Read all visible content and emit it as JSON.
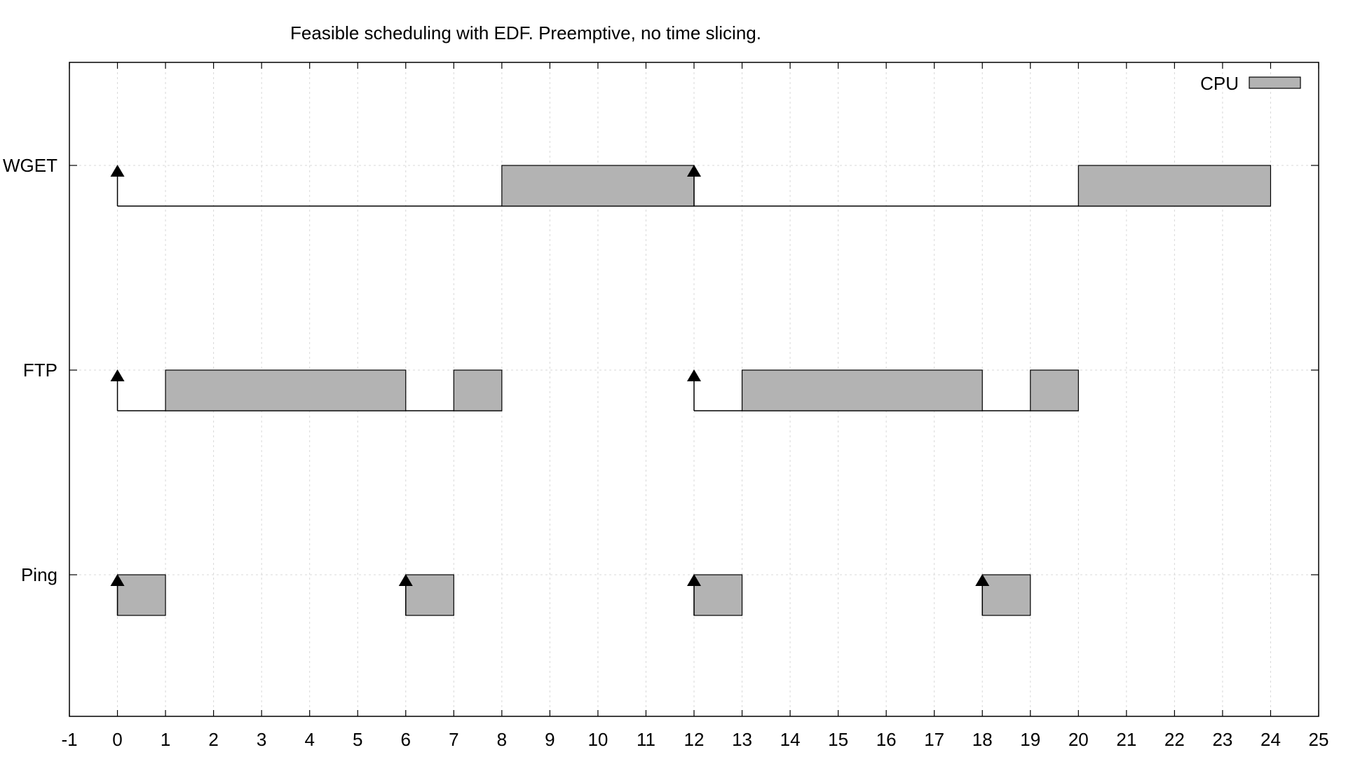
{
  "chart_data": {
    "type": "gantt",
    "title": "Feasible scheduling with EDF. Preemptive, no time slicing.",
    "xlim": [
      -1,
      25
    ],
    "x_ticks": [
      -1,
      0,
      1,
      2,
      3,
      4,
      5,
      6,
      7,
      8,
      9,
      10,
      11,
      12,
      13,
      14,
      15,
      16,
      17,
      18,
      19,
      20,
      21,
      22,
      23,
      24,
      25
    ],
    "grid": true,
    "legend": {
      "label": "CPU",
      "placement": "top-right",
      "color": "#b3b3b3"
    },
    "tasks": [
      {
        "name": "WGET",
        "arrivals": [
          0,
          12
        ],
        "baseline": [
          [
            0,
            24
          ]
        ],
        "segments": [
          [
            8,
            12
          ],
          [
            20,
            24
          ]
        ]
      },
      {
        "name": "FTP",
        "arrivals": [
          0,
          12
        ],
        "baseline": [
          [
            0,
            8
          ],
          [
            12,
            20
          ]
        ],
        "segments": [
          [
            1,
            6
          ],
          [
            7,
            8
          ],
          [
            13,
            18
          ],
          [
            19,
            20
          ]
        ]
      },
      {
        "name": "Ping",
        "arrivals": [
          0,
          6,
          12,
          18
        ],
        "baseline": [],
        "segments": [
          [
            0,
            1
          ],
          [
            6,
            7
          ],
          [
            12,
            13
          ],
          [
            18,
            19
          ]
        ]
      }
    ],
    "colors": {
      "cpu_fill": "#b3b3b3",
      "grid": "#d9d9d9",
      "outline": "#000000"
    }
  }
}
